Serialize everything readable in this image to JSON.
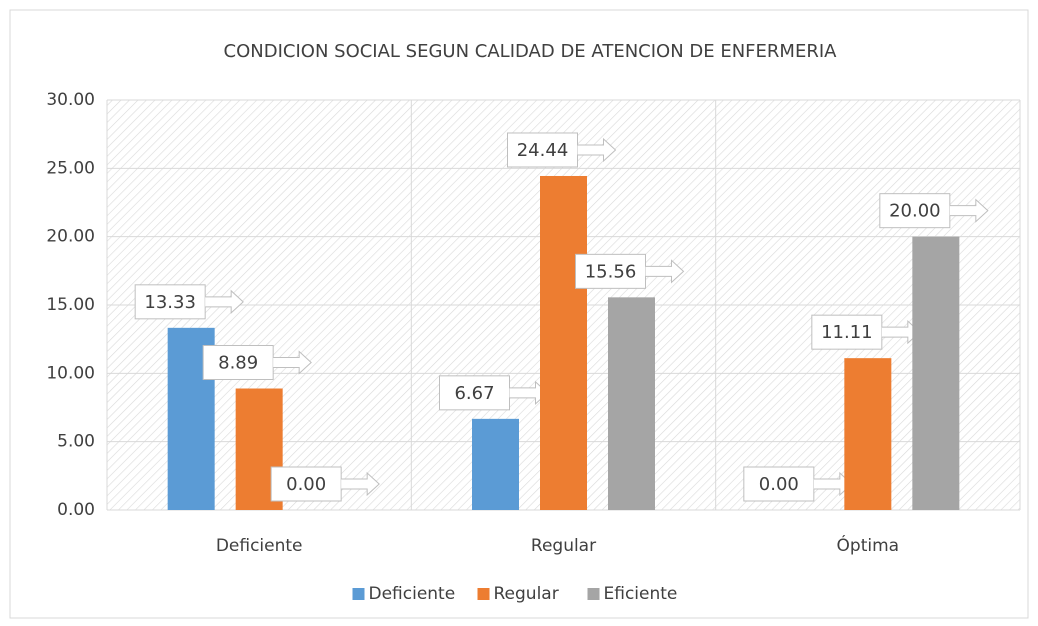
{
  "chart_data": {
    "type": "bar",
    "title": "CONDICION SOCIAL SEGUN CALIDAD DE ATENCION DE ENFERMERIA",
    "categories": [
      "Deficiente",
      "Regular",
      "Óptima"
    ],
    "series": [
      {
        "name": "Deficiente",
        "color": "#5b9bd5",
        "values": [
          13.33,
          6.67,
          0
        ],
        "value_labels": [
          "13.33",
          "6.67",
          "0.00"
        ]
      },
      {
        "name": "Regular",
        "color": "#ed7d31",
        "values": [
          8.89,
          24.44,
          11.11
        ],
        "value_labels": [
          "8.89",
          "24.44",
          "11.11"
        ]
      },
      {
        "name": "Eficiente",
        "color": "#a5a5a5",
        "values": [
          0,
          15.56,
          20
        ],
        "value_labels": [
          "0.00",
          "15.56",
          "20.00"
        ]
      }
    ],
    "ylim": [
      0,
      30
    ],
    "yticks": [
      {
        "value": 0,
        "label": "0.00"
      },
      {
        "value": 5,
        "label": "5.00"
      },
      {
        "value": 10,
        "label": "10.00"
      },
      {
        "value": 15,
        "label": "15.00"
      },
      {
        "value": 20,
        "label": "20.00"
      },
      {
        "value": 25,
        "label": "25.00"
      },
      {
        "value": 30,
        "label": "30.00"
      }
    ],
    "grid": true,
    "legend": "bottom"
  }
}
